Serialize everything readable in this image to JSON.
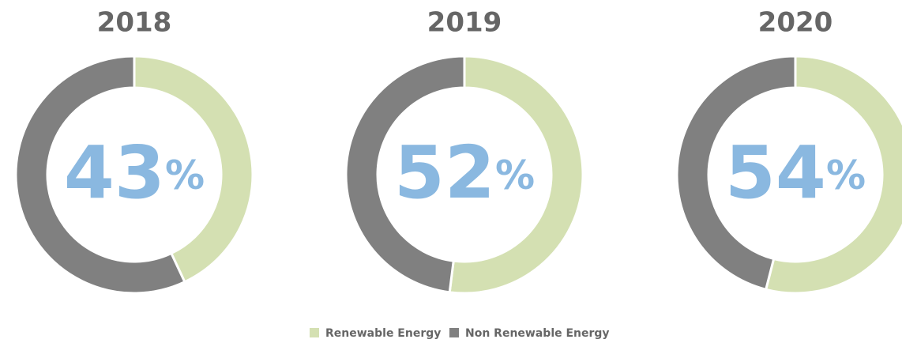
{
  "chart_data": [
    {
      "type": "pie",
      "donut": true,
      "title": "2018",
      "categories": [
        "Renewable Energy",
        "Non Renewable Energy"
      ],
      "values": [
        43,
        57
      ],
      "value_labels": [
        "43%",
        null
      ],
      "colors": [
        "#d4e0b2",
        "#808080"
      ]
    },
    {
      "type": "pie",
      "donut": true,
      "title": "2019",
      "categories": [
        "Renewable Energy",
        "Non Renewable Energy"
      ],
      "values": [
        52,
        48
      ],
      "value_labels": [
        "52%",
        null
      ],
      "colors": [
        "#d4e0b2",
        "#808080"
      ]
    },
    {
      "type": "pie",
      "donut": true,
      "title": "2020",
      "categories": [
        "Renewable Energy",
        "Non Renewable Energy"
      ],
      "values": [
        54,
        46
      ],
      "value_labels": [
        "54%",
        null
      ],
      "colors": [
        "#d4e0b2",
        "#808080"
      ]
    }
  ]
}
